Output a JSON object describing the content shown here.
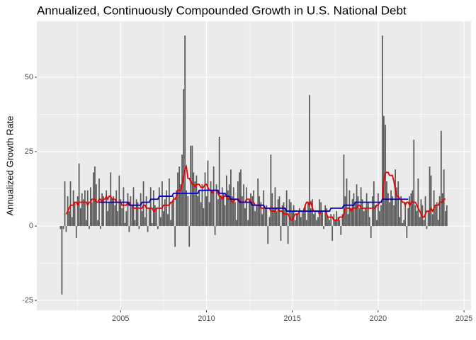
{
  "chart_data": {
    "type": "bar",
    "title": "Annualized, Continuously Compounded Growth in U.S. National Debt",
    "y_label": "Annualized Growth Rate",
    "x": [
      2001.5,
      2001.58,
      2001.67,
      2001.75,
      2001.83,
      2001.92,
      2002,
      2002.08,
      2002.17,
      2002.25,
      2002.33,
      2002.42,
      2002.5,
      2002.58,
      2002.67,
      2002.75,
      2002.83,
      2002.92,
      2003,
      2003.08,
      2003.17,
      2003.25,
      2003.33,
      2003.42,
      2003.5,
      2003.58,
      2003.67,
      2003.75,
      2003.83,
      2003.92,
      2004,
      2004.08,
      2004.17,
      2004.25,
      2004.33,
      2004.42,
      2004.5,
      2004.58,
      2004.67,
      2004.75,
      2004.83,
      2004.92,
      2005,
      2005.08,
      2005.17,
      2005.25,
      2005.33,
      2005.42,
      2005.5,
      2005.58,
      2005.67,
      2005.75,
      2005.83,
      2005.92,
      2006,
      2006.08,
      2006.17,
      2006.25,
      2006.33,
      2006.42,
      2006.5,
      2006.58,
      2006.67,
      2006.75,
      2006.83,
      2006.92,
      2007,
      2007.08,
      2007.17,
      2007.25,
      2007.33,
      2007.42,
      2007.5,
      2007.58,
      2007.67,
      2007.75,
      2007.83,
      2007.92,
      2008,
      2008.08,
      2008.17,
      2008.25,
      2008.33,
      2008.42,
      2008.5,
      2008.58,
      2008.67,
      2008.75,
      2008.83,
      2008.92,
      2009,
      2009.08,
      2009.17,
      2009.25,
      2009.33,
      2009.42,
      2009.5,
      2009.58,
      2009.67,
      2009.75,
      2009.83,
      2009.92,
      2010,
      2010.08,
      2010.17,
      2010.25,
      2010.33,
      2010.42,
      2010.5,
      2010.58,
      2010.67,
      2010.75,
      2010.83,
      2010.92,
      2011,
      2011.08,
      2011.17,
      2011.25,
      2011.33,
      2011.42,
      2011.5,
      2011.58,
      2011.67,
      2011.75,
      2011.83,
      2011.92,
      2012,
      2012.08,
      2012.17,
      2012.25,
      2012.33,
      2012.42,
      2012.5,
      2012.58,
      2012.67,
      2012.75,
      2012.83,
      2012.92,
      2013,
      2013.08,
      2013.17,
      2013.25,
      2013.33,
      2013.42,
      2013.5,
      2013.58,
      2013.67,
      2013.75,
      2013.83,
      2013.92,
      2014,
      2014.08,
      2014.17,
      2014.25,
      2014.33,
      2014.42,
      2014.5,
      2014.58,
      2014.67,
      2014.75,
      2014.83,
      2014.92,
      2015,
      2015.08,
      2015.17,
      2015.25,
      2015.33,
      2015.42,
      2015.5,
      2015.58,
      2015.67,
      2015.75,
      2015.83,
      2015.92,
      2016,
      2016.08,
      2016.17,
      2016.25,
      2016.33,
      2016.42,
      2016.5,
      2016.58,
      2016.67,
      2016.75,
      2016.83,
      2016.92,
      2017,
      2017.08,
      2017.17,
      2017.25,
      2017.33,
      2017.42,
      2017.5,
      2017.58,
      2017.67,
      2017.75,
      2017.83,
      2017.92,
      2018,
      2018.08,
      2018.17,
      2018.25,
      2018.33,
      2018.42,
      2018.5,
      2018.58,
      2018.67,
      2018.75,
      2018.83,
      2018.92,
      2019,
      2019.08,
      2019.17,
      2019.25,
      2019.33,
      2019.42,
      2019.5,
      2019.58,
      2019.67,
      2019.75,
      2019.83,
      2019.92,
      2020,
      2020.08,
      2020.17,
      2020.25,
      2020.33,
      2020.42,
      2020.5,
      2020.58,
      2020.67,
      2020.75,
      2020.83,
      2020.92,
      2021,
      2021.08,
      2021.17,
      2021.25,
      2021.33,
      2021.42,
      2021.5,
      2021.58,
      2021.67,
      2021.75,
      2021.83,
      2021.92,
      2022,
      2022.08,
      2022.17,
      2022.25,
      2022.33,
      2022.42,
      2022.5,
      2022.58,
      2022.67,
      2022.75,
      2022.83,
      2022.92,
      2023,
      2023.08,
      2023.17,
      2023.25,
      2023.33,
      2023.42,
      2023.5,
      2023.58,
      2023.67,
      2023.75,
      2023.83,
      2023.92,
      2024
    ],
    "series": [
      {
        "type": "bar",
        "color": "#595959",
        "values": [
          -1,
          -23,
          -1,
          15,
          -2,
          10,
          5,
          15,
          3,
          12,
          8,
          -4,
          10,
          21,
          6,
          11,
          9,
          12,
          2,
          12,
          -1,
          13,
          8,
          18,
          20,
          14,
          2,
          16,
          -1,
          11,
          10,
          0,
          12,
          5,
          8,
          18,
          9,
          10,
          7,
          12,
          5,
          17,
          9,
          6,
          13,
          1,
          5,
          11,
          -2,
          10,
          7,
          13,
          2,
          9,
          8,
          -1,
          11,
          5,
          15,
          3,
          10,
          -2,
          6,
          13,
          1,
          12,
          7,
          6,
          -1,
          13,
          3,
          15,
          5,
          9,
          12,
          4,
          16,
          2,
          8,
          10,
          -7,
          12,
          18,
          20,
          14,
          24,
          46,
          64,
          12,
          10,
          -7,
          27,
          27,
          18,
          15,
          17,
          10,
          12,
          8,
          14,
          6,
          18,
          10,
          22,
          8,
          15,
          12,
          20,
          -3,
          14,
          9,
          30,
          10,
          13,
          11,
          7,
          17,
          12,
          14,
          19,
          10,
          13,
          8,
          2,
          15,
          18,
          19,
          10,
          14,
          6,
          13,
          2,
          9,
          11,
          10,
          12,
          5,
          7,
          16,
          10,
          8,
          4,
          12,
          6,
          7,
          -6,
          3,
          24,
          11,
          6,
          13,
          5,
          9,
          10,
          -5,
          7,
          8,
          6,
          12,
          -6,
          9,
          8,
          5,
          7,
          2,
          4,
          4,
          6,
          3,
          5,
          6,
          7,
          2,
          8,
          44,
          6,
          9,
          4,
          5,
          2,
          3,
          9,
          8,
          5,
          -1,
          7,
          6,
          3,
          2,
          4,
          -5,
          4,
          2,
          5,
          3,
          2,
          -3,
          4,
          24,
          10,
          16,
          4,
          12,
          6,
          9,
          11,
          8,
          14,
          10,
          6,
          13,
          9,
          5,
          6,
          11,
          8,
          3,
          -4,
          10,
          15,
          7,
          2,
          11,
          5,
          7,
          64,
          37,
          34,
          15,
          11,
          8,
          12,
          10,
          7,
          19,
          13,
          15,
          3,
          10,
          1,
          2,
          8,
          -4,
          6,
          10,
          11,
          12,
          29,
          7,
          5,
          16,
          3,
          9,
          7,
          2,
          10,
          -1,
          5,
          20,
          17,
          4,
          12,
          7,
          8,
          2,
          10,
          32,
          11,
          19,
          5,
          7
        ]
      },
      {
        "type": "line",
        "color": "#ee0000",
        "values": [
          null,
          null,
          null,
          null,
          4,
          5,
          6,
          7,
          7,
          7,
          8,
          8,
          7,
          8,
          8,
          8,
          8,
          8,
          8,
          7,
          8,
          8,
          9,
          9,
          9,
          8,
          8,
          9,
          9,
          8,
          9,
          9,
          10,
          9,
          10,
          10,
          9,
          9,
          9,
          8,
          8,
          8,
          8,
          7,
          7,
          7,
          7,
          8,
          8,
          7,
          7,
          6,
          6,
          6,
          6,
          6,
          6,
          6,
          7,
          7,
          6,
          6,
          6,
          6,
          6,
          5,
          5,
          6,
          6,
          6,
          6,
          6,
          7,
          7,
          7,
          7,
          7,
          8,
          8,
          9,
          9,
          10,
          12,
          12,
          12,
          14,
          17,
          19,
          20,
          16,
          16,
          15,
          14,
          14,
          13,
          14,
          14,
          14,
          13,
          13,
          13,
          14,
          14,
          13,
          12,
          12,
          11,
          12,
          12,
          12,
          11,
          10,
          10,
          9,
          10,
          10,
          10,
          9,
          9,
          9,
          8,
          8,
          9,
          9,
          9,
          9,
          8,
          8,
          8,
          8,
          9,
          9,
          9,
          8,
          8,
          8,
          7,
          7,
          7,
          7,
          6,
          6,
          6,
          6,
          6,
          6,
          6,
          5,
          5,
          5,
          5,
          6,
          6,
          5,
          5,
          5,
          4,
          4,
          4,
          4,
          3,
          2,
          2,
          3,
          4,
          4,
          4,
          5,
          5,
          5,
          5,
          7,
          8,
          8,
          7,
          8,
          6,
          5,
          5,
          5,
          5,
          4,
          5,
          5,
          5,
          5,
          4,
          3,
          3,
          3,
          3,
          2,
          2,
          2,
          2,
          3,
          3,
          3,
          4,
          6,
          6,
          6,
          6,
          5,
          6,
          6,
          6,
          6,
          7,
          7,
          6,
          6,
          6,
          6,
          6,
          6,
          6,
          6,
          6,
          6,
          6,
          7,
          7,
          8,
          8,
          9,
          15,
          18,
          18,
          18,
          17,
          17,
          17,
          15,
          12,
          10,
          10,
          9,
          9,
          8,
          8,
          7,
          8,
          8,
          7,
          8,
          8,
          8,
          8,
          7,
          6,
          5,
          4,
          3,
          3,
          4,
          5,
          5,
          5,
          6,
          5,
          6,
          7,
          7,
          7,
          8,
          8,
          8,
          9,
          9,
          null
        ]
      },
      {
        "type": "line",
        "color": "#0000cc",
        "values": [
          null,
          null,
          null,
          null,
          null,
          null,
          null,
          null,
          null,
          null,
          null,
          null,
          null,
          null,
          null,
          null,
          null,
          null,
          null,
          null,
          null,
          null,
          null,
          null,
          null,
          null,
          null,
          8,
          8,
          8,
          8,
          8,
          8,
          8,
          8,
          8,
          8,
          8,
          8,
          8,
          8,
          8,
          8,
          8,
          8,
          8,
          8,
          8,
          7,
          7,
          7,
          7,
          7,
          7,
          7,
          7,
          7,
          8,
          8,
          8,
          8,
          8,
          8,
          9,
          9,
          9,
          9,
          9,
          9,
          10,
          10,
          10,
          10,
          10,
          10,
          10,
          10,
          10,
          10,
          11,
          11,
          11,
          11,
          11,
          11,
          11,
          11,
          11,
          11,
          11,
          11,
          11,
          11,
          11,
          11,
          11,
          11,
          12,
          12,
          12,
          12,
          12,
          12,
          12,
          12,
          12,
          12,
          12,
          12,
          12,
          12,
          11,
          11,
          11,
          11,
          11,
          10,
          10,
          10,
          9,
          9,
          9,
          9,
          9,
          9,
          8,
          8,
          8,
          8,
          8,
          8,
          8,
          8,
          8,
          7,
          7,
          7,
          7,
          7,
          7,
          7,
          7,
          7,
          6,
          6,
          6,
          6,
          6,
          6,
          6,
          6,
          6,
          6,
          6,
          6,
          6,
          6,
          6,
          5,
          5,
          5,
          5,
          5,
          5,
          5,
          5,
          5,
          5,
          5,
          5,
          5,
          5,
          5,
          5,
          5,
          5,
          5,
          5,
          5,
          5,
          5,
          5,
          5,
          5,
          5,
          5,
          5,
          5,
          5,
          6,
          6,
          6,
          6,
          6,
          6,
          6,
          6,
          6,
          7,
          7,
          7,
          7,
          7,
          7,
          7,
          7,
          8,
          8,
          8,
          8,
          8,
          8,
          8,
          8,
          8,
          8,
          8,
          8,
          8,
          8,
          8,
          8,
          8,
          8,
          8,
          9,
          9,
          9,
          9,
          9,
          9,
          9,
          9,
          9,
          9,
          9,
          9,
          9,
          9,
          9,
          9,
          9,
          9,
          9,
          null,
          null,
          null,
          null,
          null,
          null,
          null,
          null,
          null,
          null,
          null,
          null,
          null,
          null,
          null,
          null,
          null,
          null,
          null,
          null,
          null,
          null,
          null,
          null,
          null,
          null,
          null
        ]
      }
    ],
    "xlim": [
      2000.12,
      2025.41
    ],
    "xticks": [
      2005,
      2010,
      2015,
      2020,
      2025
    ],
    "ylim": [
      -28.3,
      68.8
    ],
    "yticks": [
      -25,
      0,
      25,
      50
    ],
    "grid": true
  }
}
